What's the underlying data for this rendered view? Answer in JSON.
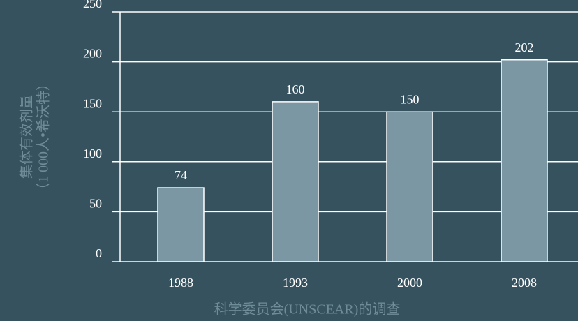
{
  "chart_data": {
    "type": "bar",
    "y_label": [
      "集体有效剂量",
      "（1 000人•希沃特）"
    ],
    "x_label": "科学委员会(UNSCEAR)的调查",
    "categories": [
      "1988",
      "1993",
      "2000",
      "2008"
    ],
    "values": [
      74,
      160,
      150,
      202
    ],
    "color": "#7a97a3",
    "ylim": [
      0,
      250
    ],
    "yticks": [
      0,
      50,
      100,
      150,
      200,
      250
    ],
    "grid": true
  }
}
